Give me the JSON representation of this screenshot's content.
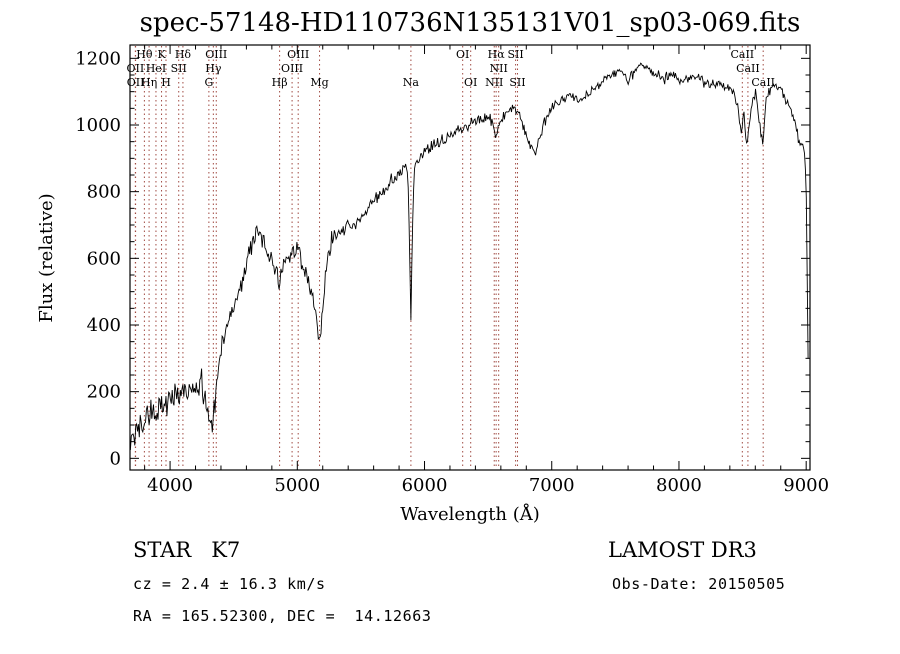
{
  "figure": {
    "title": "spec-57148-HD110736N135131V01_sp03-069.fits",
    "footer": {
      "classification": "STAR   K7",
      "survey": "LAMOST DR3",
      "cz": "cz = 2.4 ± 16.3 km/s",
      "obs_date": "Obs-Date: 20150505",
      "ra_dec": "RA = 165.52300, DEC =  14.12663"
    }
  },
  "chart_data": {
    "type": "line",
    "title": "spec-57148-HD110736N135131V01_sp03-069.fits",
    "xlabel": "Wavelength (Å)",
    "ylabel": "Flux (relative)",
    "xlim": [
      3685,
      9030
    ],
    "ylim": [
      -35,
      1240
    ],
    "x_ticks": [
      4000,
      5000,
      6000,
      7000,
      8000,
      9000
    ],
    "y_ticks": [
      0,
      200,
      400,
      600,
      800,
      1000,
      1200
    ],
    "x_minor_step": 200,
    "y_minor_step": 50,
    "grid": false,
    "legend": "none",
    "line_color": "#000000",
    "marker_color": "#a04a42",
    "spectral_lines": [
      {
        "wl": 3727,
        "label": "OII",
        "row": 2
      },
      {
        "wl": 3729,
        "label": "OII",
        "row": 3
      },
      {
        "wl": 3798,
        "label": "Hθ",
        "row": 1
      },
      {
        "wl": 3835,
        "label": "Hη",
        "row": 3
      },
      {
        "wl": 3889,
        "label": "HeI",
        "row": 2
      },
      {
        "wl": 3933,
        "label": "K",
        "row": 1
      },
      {
        "wl": 3968,
        "label": "H",
        "row": 3
      },
      {
        "wl": 4068,
        "label": "SII",
        "row": 2
      },
      {
        "wl": 4101,
        "label": "Hδ",
        "row": 1
      },
      {
        "wl": 4305,
        "label": "G",
        "row": 3
      },
      {
        "wl": 4340,
        "label": "Hγ",
        "row": 2
      },
      {
        "wl": 4363,
        "label": "OIII",
        "row": 1
      },
      {
        "wl": 4861,
        "label": "Hβ",
        "row": 3
      },
      {
        "wl": 4959,
        "label": "OIII",
        "row": 2
      },
      {
        "wl": 5007,
        "label": "OIII",
        "row": 1
      },
      {
        "wl": 5175,
        "label": "Mg",
        "row": 3
      },
      {
        "wl": 5893,
        "label": "Na",
        "row": 3
      },
      {
        "wl": 6300,
        "label": "OI",
        "row": 1
      },
      {
        "wl": 6363,
        "label": "OI",
        "row": 3
      },
      {
        "wl": 6548,
        "label": "NII",
        "row": 3
      },
      {
        "wl": 6563,
        "label": "Hα",
        "row": 1
      },
      {
        "wl": 6583,
        "label": "NII",
        "row": 2
      },
      {
        "wl": 6716,
        "label": "SII",
        "row": 1
      },
      {
        "wl": 6731,
        "label": "SII",
        "row": 3
      },
      {
        "wl": 8498,
        "label": "CaII",
        "row": 1
      },
      {
        "wl": 8542,
        "label": "CaII",
        "row": 2
      },
      {
        "wl": 8662,
        "label": "CaII",
        "row": 3
      }
    ],
    "noise_regions": [
      [
        3685,
        4360,
        24
      ],
      [
        4360,
        5280,
        16
      ],
      [
        5280,
        6100,
        10
      ],
      [
        6100,
        9030,
        7
      ]
    ],
    "points": [
      [
        3690,
        20
      ],
      [
        3700,
        60
      ],
      [
        3712,
        95
      ],
      [
        3724,
        55
      ],
      [
        3736,
        110
      ],
      [
        3748,
        85
      ],
      [
        3760,
        115
      ],
      [
        3775,
        95
      ],
      [
        3790,
        130
      ],
      [
        3805,
        105
      ],
      [
        3820,
        135
      ],
      [
        3835,
        110
      ],
      [
        3850,
        145
      ],
      [
        3865,
        125
      ],
      [
        3880,
        150
      ],
      [
        3895,
        120
      ],
      [
        3910,
        150
      ],
      [
        3925,
        160
      ],
      [
        3940,
        140
      ],
      [
        3955,
        165
      ],
      [
        3970,
        150
      ],
      [
        3985,
        170
      ],
      [
        4000,
        175
      ],
      [
        4020,
        180
      ],
      [
        4040,
        190
      ],
      [
        4060,
        170
      ],
      [
        4080,
        195
      ],
      [
        4100,
        185
      ],
      [
        4120,
        200
      ],
      [
        4140,
        205
      ],
      [
        4160,
        210
      ],
      [
        4180,
        215
      ],
      [
        4200,
        210
      ],
      [
        4220,
        215
      ],
      [
        4240,
        220
      ],
      [
        4260,
        195
      ],
      [
        4280,
        160
      ],
      [
        4300,
        135
      ],
      [
        4320,
        115
      ],
      [
        4340,
        120
      ],
      [
        4355,
        180
      ],
      [
        4370,
        250
      ],
      [
        4385,
        300
      ],
      [
        4400,
        320
      ],
      [
        4420,
        350
      ],
      [
        4440,
        385
      ],
      [
        4460,
        405
      ],
      [
        4480,
        430
      ],
      [
        4500,
        450
      ],
      [
        4520,
        475
      ],
      [
        4540,
        505
      ],
      [
        4560,
        535
      ],
      [
        4580,
        560
      ],
      [
        4600,
        580
      ],
      [
        4620,
        615
      ],
      [
        4640,
        640
      ],
      [
        4660,
        660
      ],
      [
        4680,
        680
      ],
      [
        4695,
        690
      ],
      [
        4710,
        665
      ],
      [
        4725,
        650
      ],
      [
        4740,
        640
      ],
      [
        4755,
        630
      ],
      [
        4770,
        615
      ],
      [
        4785,
        600
      ],
      [
        4800,
        585
      ],
      [
        4815,
        575
      ],
      [
        4830,
        565
      ],
      [
        4845,
        550
      ],
      [
        4861,
        540
      ],
      [
        4875,
        558
      ],
      [
        4890,
        572
      ],
      [
        4905,
        585
      ],
      [
        4920,
        598
      ],
      [
        4935,
        608
      ],
      [
        4950,
        615
      ],
      [
        4965,
        622
      ],
      [
        4980,
        628
      ],
      [
        4995,
        630
      ],
      [
        5010,
        622
      ],
      [
        5025,
        610
      ],
      [
        5040,
        595
      ],
      [
        5060,
        570
      ],
      [
        5080,
        545
      ],
      [
        5100,
        515
      ],
      [
        5120,
        480
      ],
      [
        5140,
        440
      ],
      [
        5160,
        385
      ],
      [
        5175,
        335
      ],
      [
        5190,
        395
      ],
      [
        5205,
        470
      ],
      [
        5220,
        545
      ],
      [
        5240,
        600
      ],
      [
        5260,
        630
      ],
      [
        5280,
        648
      ],
      [
        5300,
        660
      ],
      [
        5325,
        670
      ],
      [
        5350,
        680
      ],
      [
        5375,
        690
      ],
      [
        5400,
        698
      ],
      [
        5425,
        693
      ],
      [
        5450,
        700
      ],
      [
        5475,
        712
      ],
      [
        5500,
        722
      ],
      [
        5525,
        732
      ],
      [
        5550,
        745
      ],
      [
        5575,
        758
      ],
      [
        5600,
        768
      ],
      [
        5625,
        778
      ],
      [
        5650,
        790
      ],
      [
        5675,
        800
      ],
      [
        5700,
        812
      ],
      [
        5725,
        822
      ],
      [
        5750,
        832
      ],
      [
        5775,
        842
      ],
      [
        5800,
        852
      ],
      [
        5825,
        860
      ],
      [
        5850,
        866
      ],
      [
        5868,
        860
      ],
      [
        5880,
        680
      ],
      [
        5893,
        415
      ],
      [
        5906,
        690
      ],
      [
        5918,
        875
      ],
      [
        5935,
        888
      ],
      [
        5955,
        898
      ],
      [
        5975,
        908
      ],
      [
        6000,
        920
      ],
      [
        6025,
        930
      ],
      [
        6050,
        938
      ],
      [
        6075,
        945
      ],
      [
        6100,
        950
      ],
      [
        6130,
        955
      ],
      [
        6160,
        960
      ],
      [
        6190,
        966
      ],
      [
        6220,
        974
      ],
      [
        6250,
        982
      ],
      [
        6280,
        988
      ],
      [
        6310,
        994
      ],
      [
        6340,
        1000
      ],
      [
        6370,
        1005
      ],
      [
        6400,
        1010
      ],
      [
        6430,
        1015
      ],
      [
        6460,
        1020
      ],
      [
        6490,
        1024
      ],
      [
        6515,
        1016
      ],
      [
        6540,
        995
      ],
      [
        6563,
        962
      ],
      [
        6585,
        998
      ],
      [
        6610,
        1018
      ],
      [
        6635,
        1032
      ],
      [
        6660,
        1042
      ],
      [
        6685,
        1048
      ],
      [
        6710,
        1050
      ],
      [
        6735,
        1036
      ],
      [
        6760,
        1012
      ],
      [
        6785,
        988
      ],
      [
        6810,
        962
      ],
      [
        6835,
        938
      ],
      [
        6860,
        918
      ],
      [
        6875,
        912
      ],
      [
        6890,
        940
      ],
      [
        6910,
        968
      ],
      [
        6935,
        995
      ],
      [
        6960,
        1020
      ],
      [
        6985,
        1038
      ],
      [
        7010,
        1052
      ],
      [
        7035,
        1062
      ],
      [
        7060,
        1070
      ],
      [
        7090,
        1078
      ],
      [
        7120,
        1084
      ],
      [
        7150,
        1088
      ],
      [
        7180,
        1080
      ],
      [
        7210,
        1074
      ],
      [
        7240,
        1082
      ],
      [
        7270,
        1092
      ],
      [
        7300,
        1100
      ],
      [
        7330,
        1110
      ],
      [
        7360,
        1120
      ],
      [
        7390,
        1130
      ],
      [
        7420,
        1140
      ],
      [
        7450,
        1148
      ],
      [
        7480,
        1154
      ],
      [
        7510,
        1160
      ],
      [
        7540,
        1164
      ],
      [
        7570,
        1150
      ],
      [
        7600,
        1122
      ],
      [
        7620,
        1140
      ],
      [
        7650,
        1160
      ],
      [
        7680,
        1174
      ],
      [
        7710,
        1180
      ],
      [
        7740,
        1172
      ],
      [
        7770,
        1164
      ],
      [
        7800,
        1157
      ],
      [
        7830,
        1150
      ],
      [
        7860,
        1144
      ],
      [
        7890,
        1140
      ],
      [
        7920,
        1147
      ],
      [
        7950,
        1152
      ],
      [
        7980,
        1145
      ],
      [
        8010,
        1138
      ],
      [
        8040,
        1130
      ],
      [
        8070,
        1138
      ],
      [
        8100,
        1145
      ],
      [
        8130,
        1150
      ],
      [
        8160,
        1142
      ],
      [
        8190,
        1130
      ],
      [
        8220,
        1122
      ],
      [
        8250,
        1115
      ],
      [
        8280,
        1124
      ],
      [
        8310,
        1130
      ],
      [
        8340,
        1120
      ],
      [
        8370,
        1112
      ],
      [
        8400,
        1105
      ],
      [
        8430,
        1096
      ],
      [
        8460,
        1058
      ],
      [
        8490,
        978
      ],
      [
        8510,
        1040
      ],
      [
        8530,
        930
      ],
      [
        8555,
        1015
      ],
      [
        8580,
        1078
      ],
      [
        8605,
        1098
      ],
      [
        8635,
        1000
      ],
      [
        8660,
        938
      ],
      [
        8680,
        1058
      ],
      [
        8700,
        1098
      ],
      [
        8730,
        1113
      ],
      [
        8760,
        1120
      ],
      [
        8790,
        1105
      ],
      [
        8820,
        1090
      ],
      [
        8850,
        1070
      ],
      [
        8880,
        1045
      ],
      [
        8910,
        1012
      ],
      [
        8935,
        968
      ],
      [
        8955,
        925
      ],
      [
        8975,
        958
      ],
      [
        8990,
        900
      ],
      [
        9000,
        820
      ],
      [
        9008,
        560
      ],
      [
        9015,
        300
      ],
      [
        9020,
        210
      ]
    ]
  }
}
